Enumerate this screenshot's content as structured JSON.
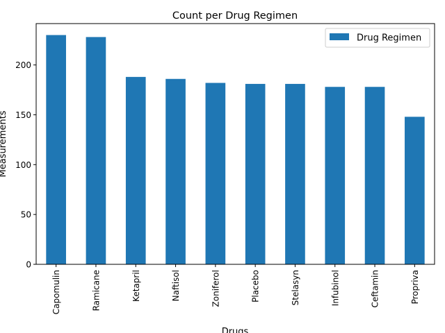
{
  "chart_data": {
    "type": "bar",
    "title": "Count per Drug Regimen",
    "xlabel": "Drugs",
    "ylabel": "Measurements",
    "categories": [
      "Capomulin",
      "Ramicane",
      "Ketapril",
      "Naftisol",
      "Zoniferol",
      "Placebo",
      "Stelasyn",
      "Infubinol",
      "Ceftamin",
      "Propriva"
    ],
    "series": [
      {
        "name": "Drug Regimen",
        "values": [
          230,
          228,
          188,
          186,
          182,
          181,
          181,
          178,
          178,
          148
        ]
      }
    ],
    "ylim": [
      0,
      241.5
    ],
    "yticks": [
      0,
      50,
      100,
      150,
      200
    ],
    "grid": false,
    "legend_position": "top-right",
    "colors": {
      "bar": "#1f77b4"
    }
  }
}
